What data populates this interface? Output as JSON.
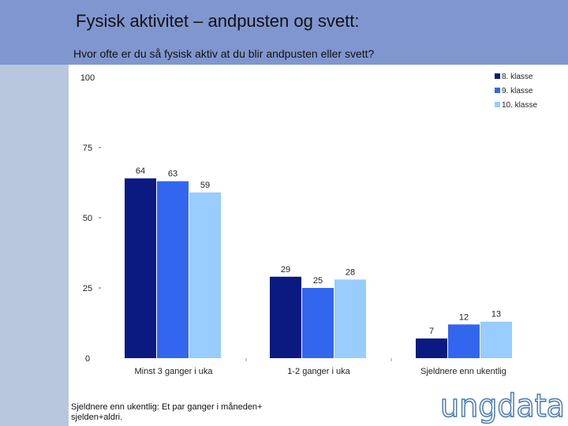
{
  "header": {
    "title": "Fysisk aktivitet – andpusten og svett:",
    "subtitle": "Hvor ofte er du så fysisk aktiv at du blir andpusten eller svett?"
  },
  "footnote": {
    "line1": "Sjeldnere enn ukentlig: Et par ganger i måneden+",
    "line2": "sjelden+aldri."
  },
  "logo": {
    "text": "ungdata"
  },
  "colors": {
    "series1": "#0a1a80",
    "series2": "#3366ee",
    "series3": "#99ccff",
    "header": "#8096cf"
  },
  "chart_data": {
    "type": "bar",
    "categories": [
      "Minst 3 ganger i uka",
      "1-2 ganger i uka",
      "Sjeldnere enn ukentlig"
    ],
    "series": [
      {
        "name": "8. klasse",
        "values": [
          64,
          29,
          7
        ]
      },
      {
        "name": "9. klasse",
        "values": [
          63,
          25,
          12
        ]
      },
      {
        "name": "10. klasse",
        "values": [
          59,
          28,
          13
        ]
      }
    ],
    "yticks": [
      "0",
      "25",
      "50",
      "75",
      "100"
    ],
    "ylim": [
      0,
      100
    ],
    "legend_position": "top-right"
  }
}
